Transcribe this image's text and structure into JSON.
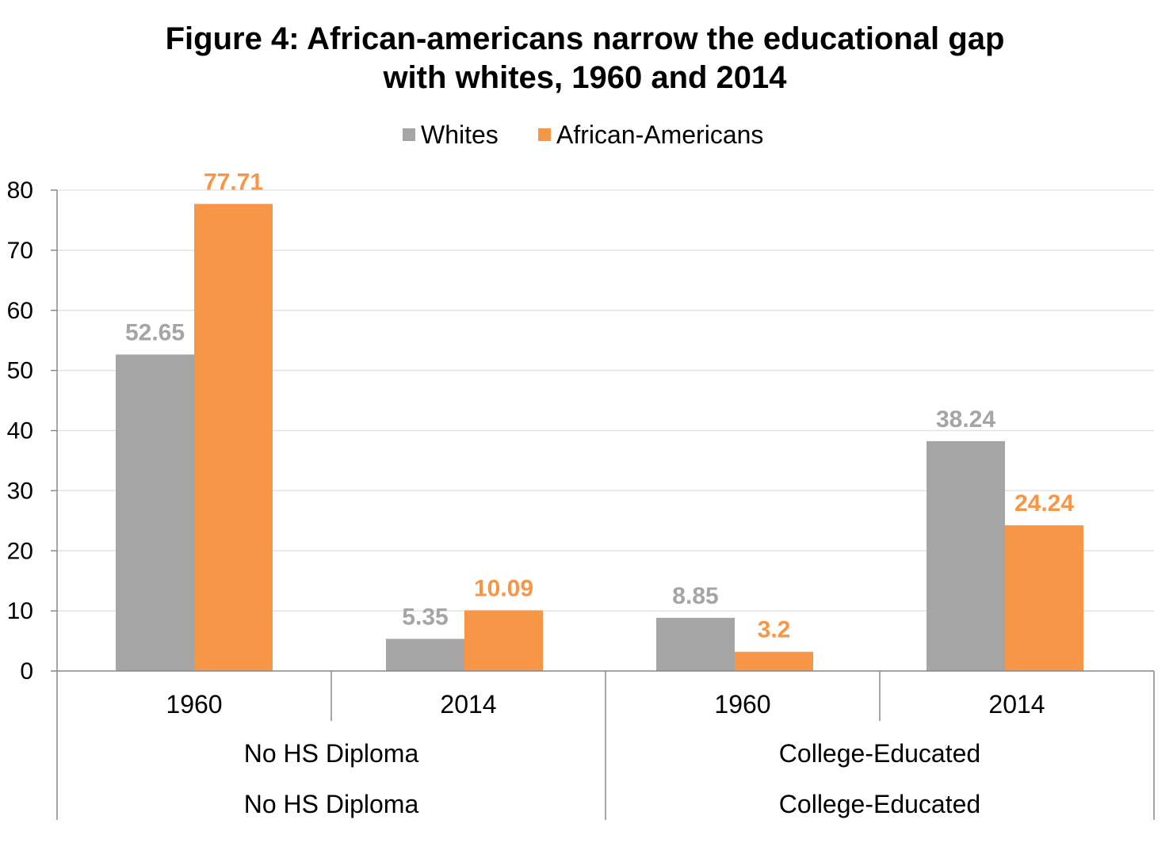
{
  "chart_data": {
    "type": "bar",
    "title_lines": [
      "Figure 4: African-americans narrow the educational gap",
      "with whites, 1960 and 2014"
    ],
    "categories": [
      "1960",
      "2014",
      "1960",
      "2014"
    ],
    "groups": [
      {
        "label": "No HS Diploma",
        "label_repeat": "No HS Diploma"
      },
      {
        "label": "College-Educated",
        "label_repeat": "College-Educated"
      }
    ],
    "series": [
      {
        "name": "Whites",
        "color": "#A5A5A5",
        "values": [
          52.65,
          5.35,
          8.85,
          38.24
        ],
        "labels": [
          "52.65",
          "5.35",
          "8.85",
          "38.24"
        ]
      },
      {
        "name": "African-Americans",
        "color": "#F79646",
        "values": [
          77.71,
          10.09,
          3.2,
          24.24
        ],
        "labels": [
          "77.71",
          "10.09",
          "3.2",
          "24.24"
        ]
      }
    ],
    "yticks": [
      "0",
      "10",
      "20",
      "30",
      "40",
      "50",
      "60",
      "70",
      "80"
    ],
    "ylim": [
      0,
      80
    ],
    "grid": true,
    "legend_position": "top-center",
    "xlabel": "",
    "ylabel": ""
  }
}
